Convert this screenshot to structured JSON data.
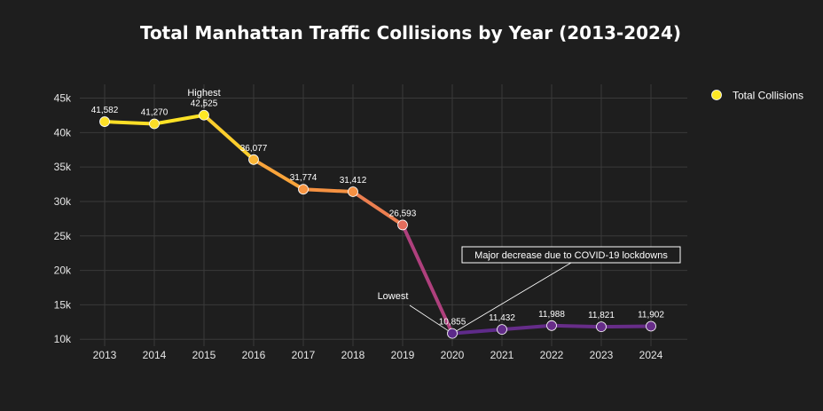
{
  "chart_data": {
    "type": "line",
    "title": "Total Manhattan Traffic Collisions by Year (2013-2024)",
    "xlabel": "",
    "ylabel": "",
    "x": [
      "2013",
      "2014",
      "2015",
      "2016",
      "2017",
      "2018",
      "2019",
      "2020",
      "2021",
      "2022",
      "2023",
      "2024"
    ],
    "series": [
      {
        "name": "Total Collisions",
        "values": [
          41582,
          41270,
          42525,
          36077,
          31774,
          31412,
          26593,
          10855,
          11432,
          11988,
          11821,
          11902
        ],
        "labels": [
          "41,582",
          "41,270",
          "42,525",
          "36,077",
          "31,774",
          "31,412",
          "26,593",
          "10,855",
          "11,432",
          "11,988",
          "11,821",
          "11,902"
        ]
      }
    ],
    "ylim": [
      9000,
      47000
    ],
    "yticks": [
      10000,
      15000,
      20000,
      25000,
      30000,
      35000,
      40000,
      45000
    ],
    "ytick_labels": [
      "10k",
      "15k",
      "20k",
      "25k",
      "30k",
      "35k",
      "40k",
      "45k"
    ],
    "grid": true,
    "legend_position": "top-right",
    "color_scale": [
      "#fde724",
      "#f89540",
      "#cc4778",
      "#5c2a8a"
    ],
    "legend_color": "#fde724",
    "annotations": [
      {
        "text": "Highest",
        "x": "2015",
        "y": 42525
      },
      {
        "text": "Lowest",
        "x": "2020",
        "y": 10855
      },
      {
        "text": "Major decrease due to COVID-19 lockdowns",
        "x": "2020",
        "y": 10855,
        "boxed": true
      }
    ]
  },
  "colors": {
    "background": "#1e1e1e",
    "grid": "#3a3a3a",
    "text": "#ffffff"
  }
}
